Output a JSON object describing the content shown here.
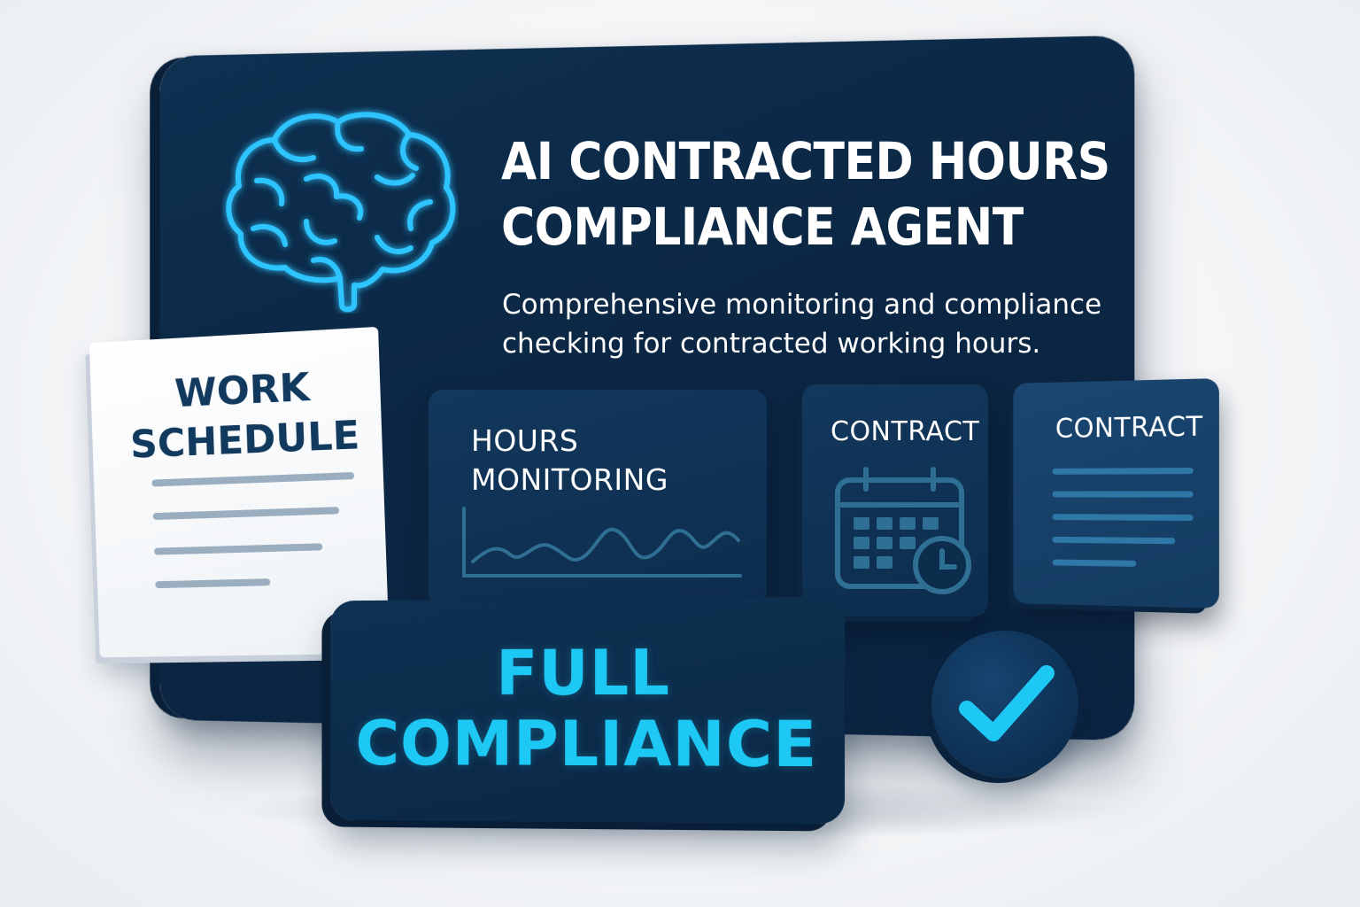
{
  "header": {
    "title_line1": "AI CONTRACTED HOURS",
    "title_line2": "COMPLIANCE AGENT",
    "subtitle_line1": "Comprehensive monitoring and compliance",
    "subtitle_line2": "checking for contracted working hours."
  },
  "paper": {
    "title_line1": "WORK",
    "title_line2": "SCHEDULE"
  },
  "cards": {
    "hours_line1": "HOURS",
    "hours_line2": "MONITORING",
    "contract_calendar": "CONTRACT",
    "contract_document": "CONTRACT"
  },
  "status": {
    "line1": "FULL",
    "line2": "COMPLIANCE"
  },
  "icons": {
    "brain": "brain-icon",
    "calendar": "calendar-clock-icon",
    "document": "document-lines-icon",
    "check": "checkmark-icon",
    "chart": "line-chart-icon"
  },
  "colors": {
    "board": "#0b2744",
    "accent": "#1ec8f5",
    "paper": "#ffffff",
    "paper_text": "#123a5f"
  }
}
